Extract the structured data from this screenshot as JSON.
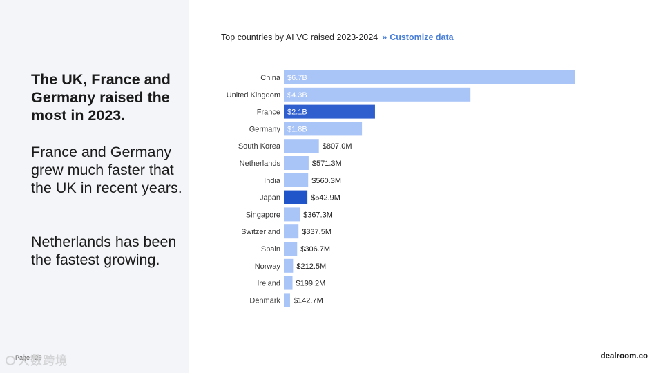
{
  "slide": {
    "headline": "The UK, France and Germany raised the most in 2023.",
    "para1": "France and Germany grew much faster that the UK in recent years.",
    "para2": "Netherlands has been the fastest growing.",
    "page_number": "Page / 28",
    "watermark": "大数跨境",
    "brand": "dealroom.co"
  },
  "chart_header": {
    "title": "Top countries by AI VC raised 2023-2024",
    "separator": "»",
    "link": "Customize data"
  },
  "colors": {
    "bar_default": "#a9c4f7",
    "bar_highlight_france": "#2f5fcf",
    "bar_highlight_japan": "#1f55c9",
    "label_inside": "#ffffff",
    "label_outside": "#222222",
    "category_label": "#333333"
  },
  "chart_data": {
    "type": "bar",
    "orientation": "horizontal",
    "title": "Top countries by AI VC raised 2023-2024",
    "categories": [
      "China",
      "United Kingdom",
      "France",
      "Germany",
      "South Korea",
      "Netherlands",
      "India",
      "Japan",
      "Singapore",
      "Switzerland",
      "Spain",
      "Norway",
      "Ireland",
      "Denmark"
    ],
    "values": [
      6700,
      4300,
      2100,
      1800,
      807.0,
      571.3,
      560.3,
      542.9,
      367.3,
      337.5,
      306.7,
      212.5,
      199.2,
      142.7
    ],
    "unit": "USD millions",
    "data_labels": [
      "$6.7B",
      "$4.3B",
      "$2.1B",
      "$1.8B",
      "$807.0M",
      "$571.3M",
      "$560.3M",
      "$542.9M",
      "$367.3M",
      "$337.5M",
      "$306.7M",
      "$212.5M",
      "$199.2M",
      "$142.7M"
    ],
    "highlighted": [
      "France",
      "Japan"
    ],
    "xlabel": "",
    "ylabel": "",
    "xlim": [
      0,
      6700
    ],
    "grid": false,
    "legend": false
  }
}
